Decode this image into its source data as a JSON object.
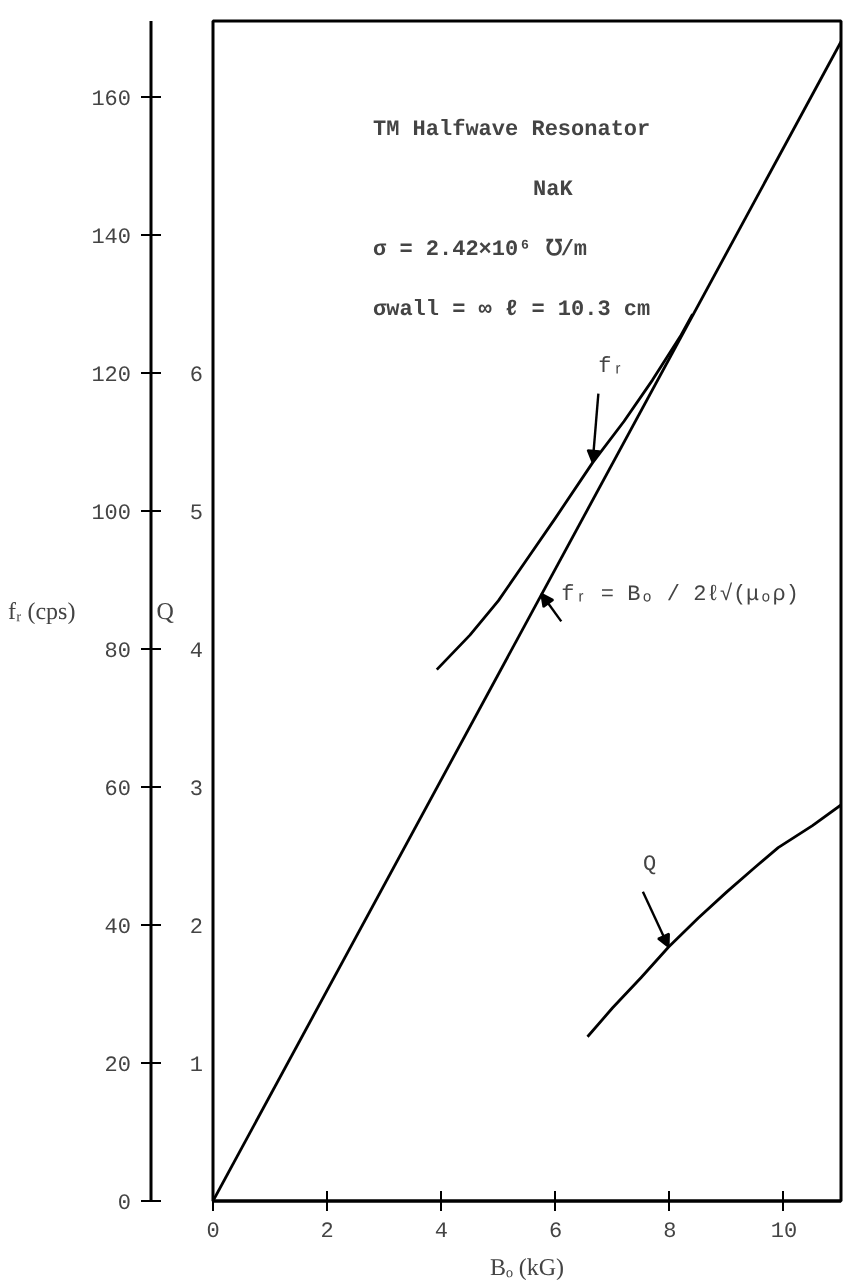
{
  "chart_data": {
    "type": "line",
    "xlabel": "Bₒ (kG)",
    "ylabel": "fᵣ (cps)",
    "y2label": "Q",
    "xlim": [
      0,
      11
    ],
    "xticks": [
      0,
      2,
      4,
      6,
      8,
      10
    ],
    "ylim": [
      0,
      171
    ],
    "yticks": [
      0,
      20,
      40,
      60,
      80,
      100,
      120,
      140,
      160
    ],
    "y2lim": [
      0,
      8.55
    ],
    "y2ticks": [
      1,
      2,
      3,
      4,
      5,
      6
    ],
    "grid": false,
    "marker": "none",
    "line_style": "solid",
    "series": [
      {
        "color": "#000000",
        "x": [
          0,
          11
        ],
        "values": [
          0,
          168
        ]
      },
      {
        "color": "#000000",
        "x": [
          3.92,
          4.5,
          5,
          5.5,
          6,
          6.65,
          7.2,
          7.7,
          8.2,
          8.4
        ],
        "values": [
          77,
          82,
          87,
          93,
          99,
          107,
          113,
          119,
          125.5,
          128.5
        ]
      },
      {
        "color": "#000000",
        "axis": "y2",
        "x": [
          6.56,
          7.0,
          7.5,
          7.98,
          8.5,
          9.0,
          9.5,
          9.9,
          10.5,
          11.0
        ],
        "values": [
          1.19,
          1.4,
          1.62,
          1.84,
          2.05,
          2.24,
          2.42,
          2.56,
          2.72,
          2.87
        ]
      }
    ],
    "annotations": [
      "TM Halfwave Resonator",
      "NaK",
      "σ = 2.42×10⁶ ℧/m",
      "σwall = ∞    ℓ = 10.3 cm",
      {
        "text": "fᵣ",
        "x": 6.65,
        "y": 107
      },
      {
        "text": "fᵣ = Bₒ / 2ℓ√(μₒρ)",
        "x": 5.75,
        "y": 88
      },
      {
        "text": "Q",
        "x": 7.98,
        "y": 36.8
      }
    ]
  }
}
